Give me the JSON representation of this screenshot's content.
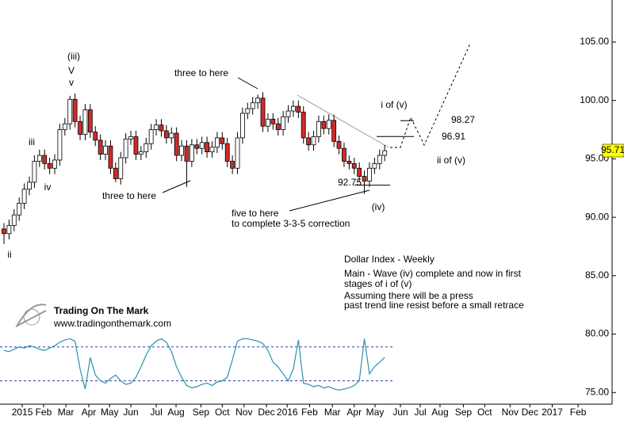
{
  "chart_data": {
    "type": "candlestick",
    "open": [
      89.0,
      88.6,
      89.3,
      90.2,
      91.2,
      92.4,
      93.0,
      94.8,
      95.3,
      94.6,
      94.2,
      94.9,
      97.5,
      98.0,
      100.1,
      98.2,
      97.1,
      99.2,
      97.3,
      96.6,
      95.4,
      96.1,
      94.2,
      93.3,
      95.1,
      96.7,
      96.9,
      95.4,
      95.6,
      96.3,
      97.5,
      97.9,
      97.4,
      96.8,
      97.2,
      95.3,
      96.1,
      94.8,
      96.2,
      95.9,
      96.4,
      95.6,
      96.0,
      96.8,
      96.3,
      94.8,
      94.2,
      96.8,
      98.9,
      99.3,
      99.8,
      100.2,
      97.8,
      98.4,
      98.0,
      97.5,
      98.6,
      99.1,
      99.5,
      99.0,
      96.8,
      96.2,
      96.9,
      98.2,
      97.6,
      98.3,
      96.5,
      95.9,
      94.8,
      94.6,
      94.2,
      93.5,
      93.1,
      94.2,
      94.6,
      95.3
    ],
    "high": [
      89.5,
      89.8,
      90.7,
      91.7,
      92.9,
      93.5,
      95.3,
      95.8,
      95.8,
      95.1,
      95.4,
      98.0,
      98.5,
      100.4,
      100.6,
      98.7,
      99.7,
      99.7,
      97.8,
      97.1,
      96.6,
      96.6,
      94.7,
      95.6,
      97.2,
      97.4,
      97.4,
      96.1,
      96.8,
      98.0,
      98.4,
      98.4,
      97.9,
      97.7,
      97.7,
      96.6,
      96.6,
      96.7,
      96.7,
      96.9,
      96.9,
      96.5,
      97.3,
      97.3,
      96.8,
      95.3,
      97.3,
      99.4,
      99.8,
      100.3,
      100.5,
      100.7,
      98.9,
      98.9,
      98.5,
      99.1,
      99.6,
      100.0,
      100.0,
      99.5,
      97.3,
      97.4,
      98.7,
      98.7,
      98.8,
      98.8,
      97.0,
      96.4,
      95.3,
      95.1,
      94.7,
      94.0,
      94.7,
      95.1,
      95.8,
      96.2
    ],
    "low": [
      87.7,
      88.1,
      88.8,
      89.7,
      90.7,
      91.9,
      92.5,
      94.3,
      94.1,
      93.7,
      93.7,
      94.4,
      97.0,
      97.5,
      97.7,
      96.6,
      96.6,
      96.8,
      96.1,
      94.9,
      94.9,
      93.7,
      93.0,
      92.8,
      94.6,
      96.2,
      94.9,
      94.9,
      95.1,
      95.8,
      97.0,
      96.9,
      96.3,
      96.3,
      94.8,
      94.8,
      92.6,
      94.3,
      95.4,
      95.4,
      95.1,
      95.1,
      95.5,
      95.8,
      94.3,
      93.7,
      93.7,
      96.3,
      98.4,
      98.8,
      99.3,
      97.3,
      97.3,
      97.5,
      97.0,
      97.0,
      98.1,
      98.6,
      98.5,
      96.3,
      95.7,
      95.7,
      96.4,
      97.1,
      97.1,
      96.0,
      95.4,
      94.3,
      94.1,
      93.7,
      93.0,
      92.0,
      92.6,
      93.7,
      94.1,
      94.8
    ],
    "close": [
      88.6,
      89.3,
      90.2,
      91.2,
      92.4,
      93.0,
      94.8,
      95.3,
      94.6,
      94.2,
      94.9,
      97.5,
      98.0,
      100.1,
      98.2,
      97.1,
      99.2,
      97.3,
      96.6,
      95.4,
      96.1,
      94.2,
      93.3,
      95.1,
      96.7,
      96.9,
      95.4,
      95.6,
      96.3,
      97.5,
      97.9,
      97.4,
      96.8,
      97.2,
      95.3,
      96.1,
      94.8,
      96.2,
      95.9,
      96.4,
      95.6,
      96.0,
      96.8,
      96.3,
      94.8,
      94.2,
      96.8,
      98.9,
      99.3,
      99.8,
      100.2,
      97.8,
      98.4,
      98.0,
      97.5,
      98.6,
      99.1,
      99.5,
      99.0,
      96.8,
      96.2,
      96.9,
      98.2,
      97.6,
      98.3,
      96.5,
      95.9,
      94.8,
      94.6,
      94.2,
      93.5,
      93.1,
      94.2,
      94.6,
      95.3,
      95.7
    ],
    "up_color": "#ffffff",
    "down_color": "#d42a2a",
    "indicator": {
      "color": "#2a8fb0",
      "band_levels": [
        78.9,
        76.0
      ],
      "values": [
        78.6,
        78.5,
        78.7,
        78.9,
        78.8,
        79.0,
        78.9,
        78.7,
        78.6,
        78.8,
        79.0,
        79.3,
        79.5,
        79.6,
        79.4,
        77.0,
        75.3,
        78.0,
        76.5,
        76.0,
        75.8,
        76.2,
        76.5,
        76.0,
        75.7,
        75.8,
        76.3,
        77.2,
        78.2,
        79.0,
        79.4,
        79.6,
        79.3,
        78.5,
        77.2,
        76.3,
        75.6,
        75.4,
        75.5,
        75.7,
        75.8,
        75.6,
        75.9,
        76.0,
        76.3,
        77.8,
        79.4,
        79.6,
        79.6,
        79.5,
        79.4,
        79.2,
        78.6,
        77.6,
        77.2,
        76.6,
        76.0,
        77.0,
        79.5,
        75.8,
        75.7,
        75.5,
        75.6,
        75.4,
        75.5,
        75.3,
        75.2,
        75.3,
        75.4,
        75.6,
        76.0,
        79.6,
        76.6,
        77.2,
        77.6,
        78.0
      ]
    },
    "levels": [
      98.27,
      96.91,
      92.75
    ],
    "last_price": 95.71,
    "ylim": [
      74.0,
      108.6
    ],
    "yticks": [
      {
        "value": 75,
        "label": "75.00"
      },
      {
        "value": 80,
        "label": "80.00"
      },
      {
        "value": 85,
        "label": "85.00"
      },
      {
        "value": 90,
        "label": "90.00"
      },
      {
        "value": 95,
        "label": "95.00"
      },
      {
        "value": 100,
        "label": "100.00"
      },
      {
        "value": 105,
        "label": "105.00"
      }
    ],
    "xlim": [
      -0.78,
      119.8
    ],
    "xticks": [
      {
        "value": 3.6,
        "label": "2015"
      },
      {
        "value": 7.8,
        "label": "Feb"
      },
      {
        "value": 12.2,
        "label": "Mar"
      },
      {
        "value": 16.7,
        "label": "Apr"
      },
      {
        "value": 20.8,
        "label": "May"
      },
      {
        "value": 25,
        "label": "Jun"
      },
      {
        "value": 30,
        "label": "Jul"
      },
      {
        "value": 33.9,
        "label": "Aug"
      },
      {
        "value": 38.8,
        "label": "Sep"
      },
      {
        "value": 43,
        "label": "Oct"
      },
      {
        "value": 47.3,
        "label": "Nov"
      },
      {
        "value": 51.7,
        "label": "Dec"
      },
      {
        "value": 55.8,
        "label": "2016"
      },
      {
        "value": 60.2,
        "label": "Feb"
      },
      {
        "value": 64.7,
        "label": "Mar"
      },
      {
        "value": 69,
        "label": "Apr"
      },
      {
        "value": 73.1,
        "label": "May"
      },
      {
        "value": 78.1,
        "label": "Jun"
      },
      {
        "value": 82,
        "label": "Jul"
      },
      {
        "value": 85.9,
        "label": "Aug"
      },
      {
        "value": 90.5,
        "label": "Sep"
      },
      {
        "value": 94.7,
        "label": "Oct"
      },
      {
        "value": 99.7,
        "label": "Nov"
      },
      {
        "value": 103.6,
        "label": "Dec"
      },
      {
        "value": 108,
        "label": "2017"
      },
      {
        "value": 113.1,
        "label": "Feb"
      }
    ],
    "annotations": [
      "(iii)",
      "V",
      "v",
      "iii",
      "iv",
      "ii",
      "three to here",
      "three to here",
      "five to here",
      "to complete 3-3-5 correction",
      "(iv)",
      "i of (v)",
      "ii of (v)",
      "Dollar Index - Weekly",
      "Main - Wave (iv) complete and now in first",
      "stages of i of (v)",
      "Assuming there will be a press",
      "past trend line resist before a small retrace",
      "Trading On The Mark",
      "www.tradingonthemark.com"
    ]
  }
}
